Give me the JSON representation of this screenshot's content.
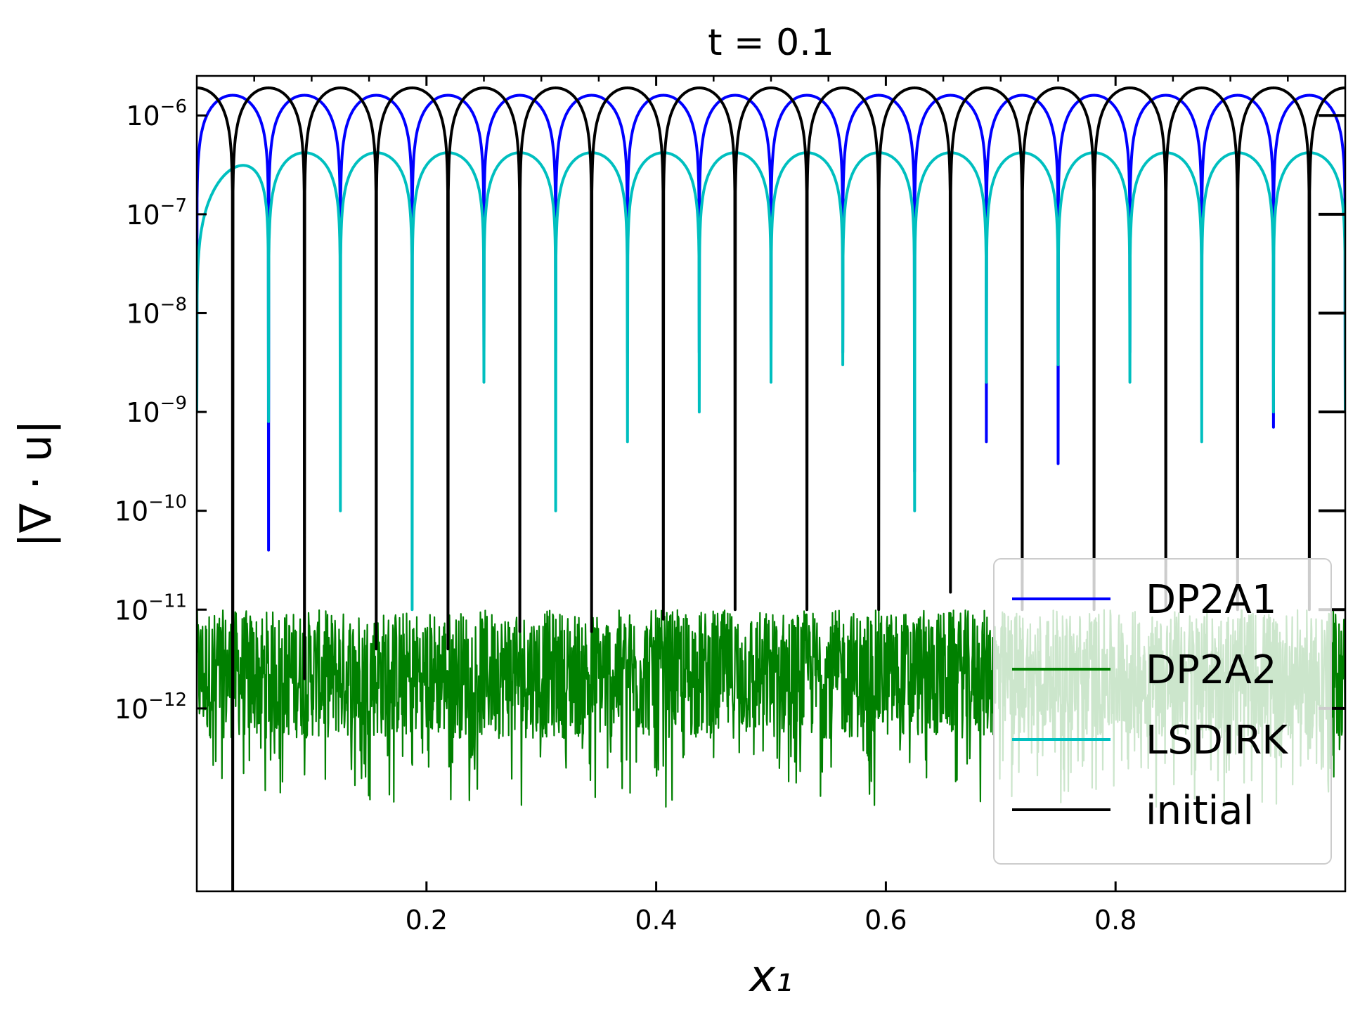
{
  "chart_data": {
    "type": "line",
    "title": "t = 0.1",
    "xlabel": "x₁",
    "ylabel": "|∇ · u|",
    "xlim": [
      0.0,
      1.0
    ],
    "ylim_log10": [
      -13.85,
      -5.6
    ],
    "yscale": "log",
    "grid": false,
    "legend_placement": "lower right",
    "x_ticks": [
      {
        "value": 0.2,
        "label": "0.2"
      },
      {
        "value": 0.4,
        "label": "0.4"
      },
      {
        "value": 0.6,
        "label": "0.6"
      },
      {
        "value": 0.8,
        "label": "0.8"
      }
    ],
    "y_ticks": [
      {
        "exp": -6,
        "base": "10",
        "sup": "−6"
      },
      {
        "exp": -7,
        "base": "10",
        "sup": "−7"
      },
      {
        "exp": -8,
        "base": "10",
        "sup": "−8"
      },
      {
        "exp": -9,
        "base": "10",
        "sup": "−9"
      },
      {
        "exp": -10,
        "base": "10",
        "sup": "−10"
      },
      {
        "exp": -11,
        "base": "10",
        "sup": "−11"
      },
      {
        "exp": -12,
        "base": "10",
        "sup": "−12"
      }
    ],
    "series": [
      {
        "name": "DP2A1",
        "color": "#0000ff",
        "kind": "periodic",
        "period": 0.0625,
        "phase": 0.0625,
        "peak": 1.6e-06,
        "first_peak_x": 0.0234,
        "dip_minima_x": [
          0.0625,
          0.125,
          0.1875,
          0.25,
          0.3125,
          0.375,
          0.4375,
          0.5,
          0.5625,
          0.625,
          0.6875,
          0.75,
          0.8125,
          0.875,
          0.9375
        ],
        "dip_minima_y": [
          4e-11,
          4e-09,
          4e-09,
          4e-09,
          4e-09,
          4e-09,
          4e-09,
          4e-09,
          4e-09,
          2.5e-10,
          5e-10,
          3e-10,
          4e-09,
          4e-09,
          7e-10
        ]
      },
      {
        "name": "DP2A2",
        "color": "#008000",
        "kind": "noise",
        "typical": 3e-12,
        "max": 9e-12,
        "min": 1e-13
      },
      {
        "name": "LSDIRK",
        "color": "#00bfbf",
        "kind": "periodic",
        "period": 0.0625,
        "phase": 0.0,
        "peak": 4.2e-07,
        "start_value": 1.5e-07,
        "dip_minima_x": [
          0.0,
          0.0625,
          0.125,
          0.1875,
          0.25,
          0.3125,
          0.375,
          0.4375,
          0.5,
          0.5625,
          0.625,
          0.6875,
          0.75,
          0.8125,
          0.875,
          0.9375
        ],
        "dip_minima_y": [
          1e-09,
          8e-10,
          1e-10,
          1e-11,
          2e-09,
          1e-10,
          5e-10,
          1e-09,
          2e-09,
          3e-09,
          1e-10,
          2e-09,
          3e-09,
          2e-09,
          5e-10,
          1e-09
        ]
      },
      {
        "name": "initial",
        "color": "#000000",
        "kind": "periodic",
        "period": 0.0625,
        "phase": 0.03125,
        "peak": 1.9e-06,
        "dip_minima_x": [
          0.03125,
          0.09375,
          0.15625,
          0.21875,
          0.28125,
          0.34375,
          0.40625,
          0.46875,
          0.53125,
          0.59375,
          0.65625,
          0.71875,
          0.78125,
          0.84375,
          0.90625,
          0.96875
        ],
        "dip_minima_y": [
          1e-14,
          2e-12,
          4e-12,
          4e-12,
          6e-12,
          6e-12,
          8e-12,
          1e-11,
          1e-11,
          1e-11,
          1.5e-11,
          1e-11,
          1e-11,
          1e-11,
          1e-11,
          1e-11
        ]
      }
    ],
    "legend": [
      {
        "name": "DP2A1",
        "color": "#0000ff"
      },
      {
        "name": "DP2A2",
        "color": "#008000"
      },
      {
        "name": "LSDIRK",
        "color": "#00bfbf"
      },
      {
        "name": "initial",
        "color": "#000000"
      }
    ]
  }
}
